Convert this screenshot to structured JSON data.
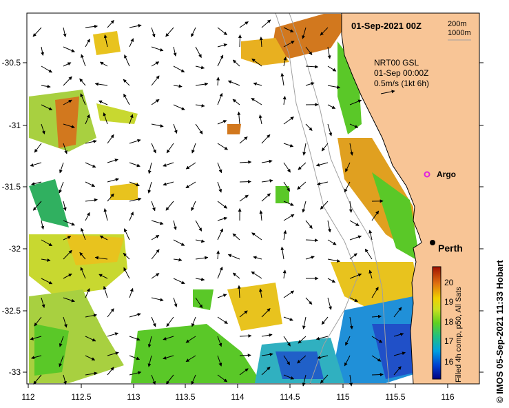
{
  "map": {
    "date_title": "01-Sep-2021 00Z",
    "depth_legend": [
      "200m",
      "1000m"
    ],
    "current_info": [
      "NRT00 GSL",
      "01-Sep 00:00Z",
      "0.5m/s (1kt 6h)"
    ],
    "argo_label": "Argo",
    "city_label": "Perth",
    "x_ticks": [
      "112",
      "112.5",
      "113",
      "113.5",
      "114",
      "114.5",
      "115",
      "115.5",
      "116"
    ],
    "y_ticks": [
      "-30.5",
      "-31",
      "-31.5",
      "-32",
      "-32.5",
      "-33"
    ],
    "colorbar_ticks": [
      "16",
      "17",
      "18",
      "19",
      "20"
    ],
    "colorbar_label": "Filled 4h comp, p50, All Sats",
    "credit": "© IMOS 05-Sep-2021 11:33 Hobart",
    "colors": {
      "land": "#f8c596",
      "sea_warm": "#d2781e",
      "sea_mid": "#e8c31e",
      "sea_cool": "#5ac828",
      "sea_cold": "#2050c8"
    }
  }
}
